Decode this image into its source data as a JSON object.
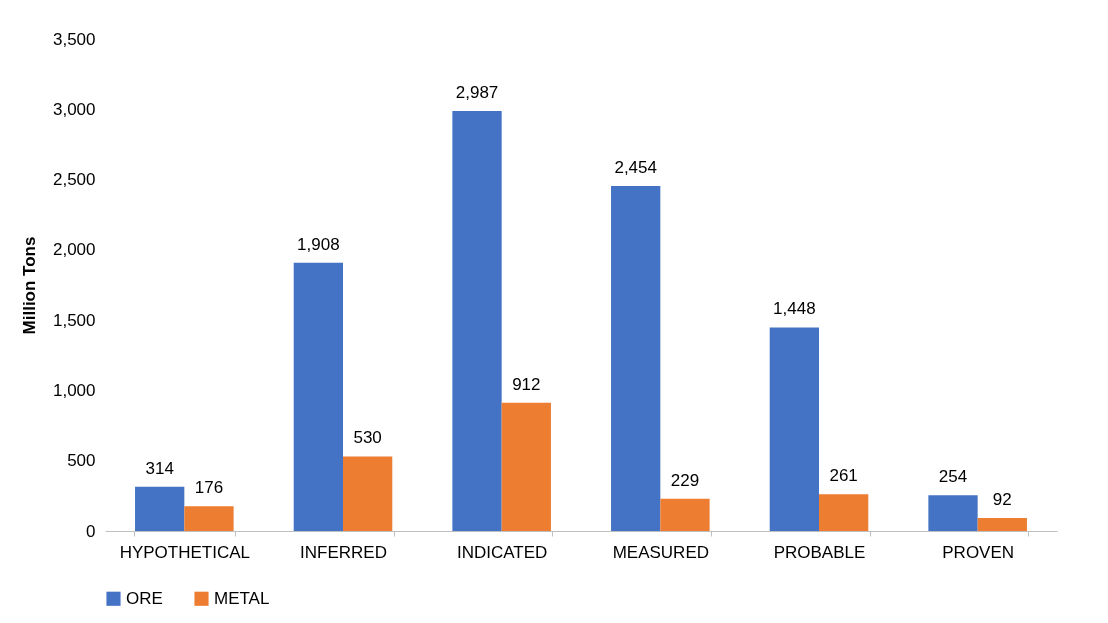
{
  "chart_data": {
    "type": "bar",
    "ylabel": "Million Tons",
    "categories": [
      "HYPOTHETICAL",
      "INFERRED",
      "INDICATED",
      "MEASURED",
      "PROBABLE",
      "PROVEN"
    ],
    "series": [
      {
        "name": "ORE",
        "color": "#4472c4",
        "values": [
          314,
          1908,
          2987,
          2454,
          1448,
          254
        ],
        "value_labels": [
          "314",
          "1,908",
          "2,987",
          "2,454",
          "1,448",
          "254"
        ]
      },
      {
        "name": "METAL",
        "color": "#ed7d31",
        "values": [
          176,
          530,
          912,
          229,
          261,
          92
        ],
        "value_labels": [
          "176",
          "530",
          "912",
          "229",
          "261",
          "92"
        ]
      }
    ],
    "ylim": [
      0,
      3500
    ],
    "yticks": [
      0,
      {
        "value": 500,
        "label": "500"
      },
      {
        "value": 1000,
        "label": "1,000"
      },
      {
        "value": 1500,
        "label": "1,500"
      },
      {
        "value": 2000,
        "label": "2,000"
      },
      {
        "value": 2500,
        "label": "2,500"
      },
      {
        "value": 3000,
        "label": "3,000"
      },
      {
        "value": 3500,
        "label": "3,500"
      }
    ],
    "legend": "bottom",
    "grid": false
  }
}
